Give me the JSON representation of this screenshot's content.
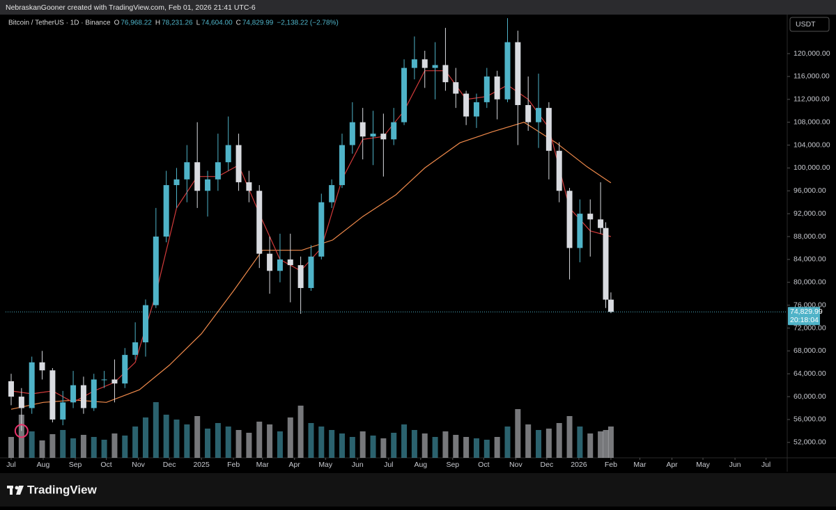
{
  "watermark": "NebraskanGooner created with TradingView.com, Feb 01, 2026 21:41 UTC-6",
  "footer": {
    "brand": "TradingView"
  },
  "chart_data": {
    "type": "candlestick",
    "symbol": "Bitcoin / TetherUS · 1D · Binance",
    "ohlc": [
      {
        "label": "O",
        "value": "76,968.22"
      },
      {
        "label": "H",
        "value": "78,231.26"
      },
      {
        "label": "L",
        "value": "74,604.00"
      },
      {
        "label": "C",
        "value": "74,829.99"
      }
    ],
    "change": "−2,138.22 (−2.78%)",
    "currency": "USDT",
    "price_label": {
      "price": "74,829.99",
      "countdown": "20:18:04"
    },
    "up_color": "#4fb3c8",
    "down_color": "#d9dbe0",
    "grid": false,
    "xlim": [
      -5.4,
      750.5
    ],
    "ylim": [
      49300,
      126700
    ],
    "volume_lim": [
      0,
      100
    ],
    "xticks": [
      {
        "value": 0,
        "label": "Jul"
      },
      {
        "value": 31,
        "label": "Aug"
      },
      {
        "value": 62,
        "label": "Sep"
      },
      {
        "value": 92,
        "label": "Oct"
      },
      {
        "value": 123,
        "label": "Nov"
      },
      {
        "value": 153,
        "label": "Dec"
      },
      {
        "value": 184,
        "label": "2025"
      },
      {
        "value": 215,
        "label": "Feb"
      },
      {
        "value": 243,
        "label": "Mar"
      },
      {
        "value": 274,
        "label": "Apr"
      },
      {
        "value": 304,
        "label": "May"
      },
      {
        "value": 335,
        "label": "Jun"
      },
      {
        "value": 365,
        "label": "Jul"
      },
      {
        "value": 396,
        "label": "Aug"
      },
      {
        "value": 427,
        "label": "Sep"
      },
      {
        "value": 457,
        "label": "Oct"
      },
      {
        "value": 488,
        "label": "Nov"
      },
      {
        "value": 518,
        "label": "Dec"
      },
      {
        "value": 549,
        "label": "2026"
      },
      {
        "value": 580,
        "label": "Feb"
      },
      {
        "value": 608,
        "label": "Mar"
      },
      {
        "value": 639,
        "label": "Apr"
      },
      {
        "value": 669,
        "label": "May"
      },
      {
        "value": 700,
        "label": "Jun"
      },
      {
        "value": 730,
        "label": "Jul"
      }
    ],
    "yticks": [
      {
        "value": 52000,
        "label": "52,000.00"
      },
      {
        "value": 56000,
        "label": "56,000.00"
      },
      {
        "value": 60000,
        "label": "60,000.00"
      },
      {
        "value": 64000,
        "label": "64,000.00"
      },
      {
        "value": 68000,
        "label": "68,000.00"
      },
      {
        "value": 72000,
        "label": "72,000.00"
      },
      {
        "value": 76000,
        "label": "76,000.00"
      },
      {
        "value": 80000,
        "label": "80,000.00"
      },
      {
        "value": 84000,
        "label": "84,000.00"
      },
      {
        "value": 88000,
        "label": "88,000.00"
      },
      {
        "value": 92000,
        "label": "92,000.00"
      },
      {
        "value": 96000,
        "label": "96,000.00"
      },
      {
        "value": 100000,
        "label": "100,000.00"
      },
      {
        "value": 104000,
        "label": "104,000.00"
      },
      {
        "value": 108000,
        "label": "108,000.00"
      },
      {
        "value": 112000,
        "label": "112,000.00"
      },
      {
        "value": 116000,
        "label": "116,000.00"
      },
      {
        "value": 120000,
        "label": "120,000.00"
      }
    ],
    "candles": {
      "x": [
        0,
        10,
        20,
        30,
        40,
        50,
        60,
        70,
        80,
        90,
        100,
        110,
        120,
        130,
        140,
        150,
        160,
        170,
        180,
        190,
        200,
        210,
        220,
        230,
        240,
        250,
        260,
        270,
        280,
        290,
        300,
        310,
        320,
        330,
        340,
        350,
        360,
        370,
        380,
        390,
        400,
        410,
        420,
        430,
        440,
        450,
        460,
        470,
        480,
        490,
        500,
        510,
        520,
        530,
        540,
        550,
        560,
        570,
        575,
        580
      ],
      "open": [
        62700,
        60000,
        58000,
        66000,
        64600,
        56000,
        59000,
        62000,
        58000,
        63000,
        63000,
        62300,
        67300,
        69500,
        76000,
        88000,
        97000,
        98000,
        101000,
        96000,
        98000,
        101000,
        104000,
        97500,
        96000,
        85000,
        82000,
        84000,
        83000,
        79000,
        84500,
        94000,
        97000,
        104000,
        108000,
        105500,
        106000,
        105000,
        108000,
        117500,
        119000,
        117500,
        118000,
        115000,
        113000,
        109000,
        111500,
        116000,
        112000,
        122000,
        111000,
        108000,
        110500,
        103000,
        96000,
        86000,
        92000,
        91000,
        89500,
        76968.22
      ],
      "high": [
        64000,
        61500,
        67000,
        68000,
        65000,
        61000,
        64500,
        63500,
        64000,
        64500,
        66500,
        68500,
        73000,
        77000,
        93000,
        99500,
        100000,
        104000,
        108000,
        99500,
        106000,
        109000,
        106000,
        99500,
        97000,
        88000,
        88500,
        88500,
        84500,
        86500,
        95500,
        98000,
        106000,
        111500,
        110500,
        110000,
        109500,
        110500,
        119000,
        123000,
        120500,
        122000,
        124500,
        117500,
        113500,
        113000,
        117500,
        117000,
        126200,
        124000,
        116000,
        116500,
        111500,
        104500,
        96500,
        94500,
        94500,
        97500,
        90500,
        78231.26
      ],
      "low": [
        58500,
        54000,
        57000,
        63000,
        55500,
        55000,
        58000,
        57000,
        57500,
        61500,
        59000,
        61500,
        66500,
        67000,
        75500,
        87000,
        93000,
        94000,
        93000,
        91500,
        96000,
        99500,
        96000,
        94000,
        82500,
        78000,
        80000,
        76500,
        74500,
        78500,
        84000,
        93000,
        96500,
        102500,
        101500,
        100500,
        98500,
        104000,
        107500,
        115500,
        114000,
        112000,
        113500,
        110500,
        107500,
        107000,
        110500,
        108500,
        111500,
        104000,
        106500,
        103500,
        98000,
        94000,
        80500,
        83500,
        84500,
        88500,
        75500,
        74604
      ],
      "close": [
        60000,
        58000,
        66000,
        64600,
        56000,
        59000,
        62000,
        58000,
        63000,
        63000,
        62300,
        67300,
        69500,
        76000,
        88000,
        97000,
        98000,
        101000,
        96000,
        98000,
        101000,
        104000,
        97500,
        96000,
        85000,
        82000,
        84000,
        83000,
        79000,
        84500,
        94000,
        97000,
        104000,
        108000,
        105500,
        106000,
        105000,
        108000,
        117500,
        119000,
        117500,
        118000,
        115000,
        113000,
        109000,
        111500,
        116000,
        112000,
        122000,
        111000,
        108000,
        110500,
        103000,
        96000,
        86000,
        92000,
        91000,
        89500,
        76968.22,
        74829.99
      ],
      "volume": [
        30,
        62,
        38,
        25,
        34,
        40,
        28,
        33,
        30,
        26,
        35,
        32,
        45,
        58,
        80,
        62,
        55,
        48,
        60,
        42,
        50,
        45,
        40,
        36,
        52,
        48,
        38,
        58,
        75,
        50,
        45,
        40,
        35,
        30,
        38,
        32,
        28,
        36,
        48,
        40,
        35,
        30,
        38,
        33,
        30,
        28,
        26,
        30,
        45,
        70,
        48,
        40,
        42,
        50,
        60,
        45,
        35,
        38,
        40,
        45
      ]
    },
    "ma_long": {
      "color": "#f08a4b",
      "x": [
        0,
        31,
        62,
        92,
        124,
        153,
        184,
        215,
        243,
        281,
        311,
        340,
        372,
        400,
        434,
        465,
        496,
        527,
        557,
        580
      ],
      "values": [
        57800,
        59000,
        59400,
        59000,
        61200,
        65500,
        71000,
        78500,
        85600,
        85600,
        87400,
        91500,
        95300,
        100000,
        104400,
        106300,
        108000,
        104400,
        100200,
        97400
      ]
    },
    "ma_short": {
      "color": "#d23b3b",
      "x": [
        0,
        20,
        40,
        60,
        80,
        100,
        120,
        140,
        160,
        180,
        200,
        220,
        240,
        260,
        280,
        300,
        320,
        340,
        360,
        380,
        400,
        420,
        440,
        460,
        480,
        500,
        520,
        540,
        560,
        580
      ],
      "values": [
        61000,
        60500,
        61000,
        59000,
        61000,
        62500,
        66000,
        78000,
        93000,
        98500,
        98500,
        100500,
        92000,
        84000,
        82000,
        86000,
        98000,
        105000,
        105500,
        110000,
        117000,
        117000,
        112000,
        112500,
        114500,
        112000,
        107000,
        93000,
        89000,
        88000
      ]
    }
  }
}
